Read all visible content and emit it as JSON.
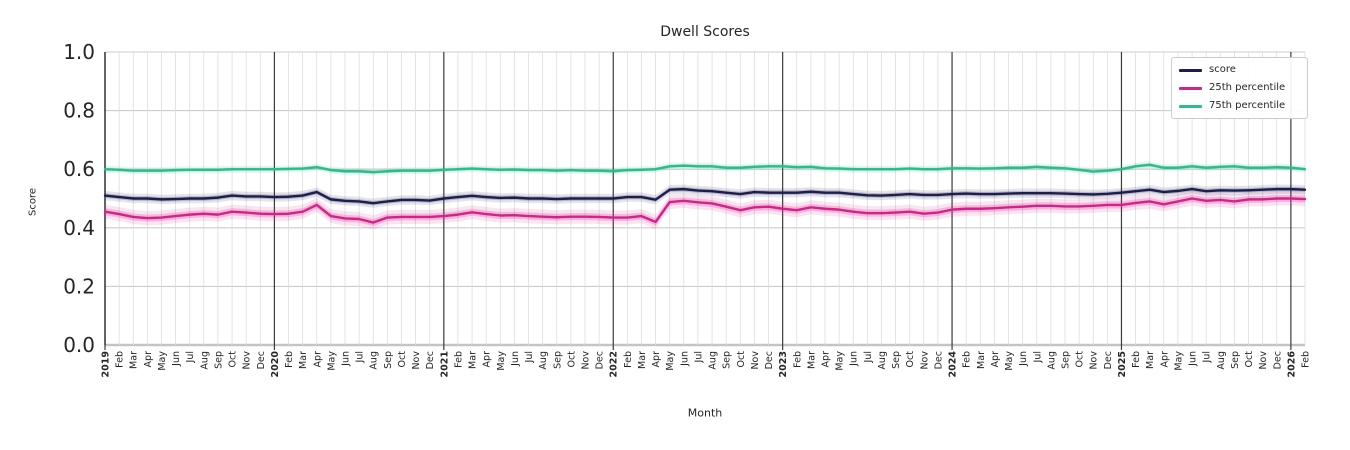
{
  "chart_data": {
    "type": "line",
    "title": "Dwell Scores",
    "xlabel": "Month",
    "ylabel": "Score",
    "ylim": [
      0.0,
      1.0
    ],
    "y_tick_labels": [
      "0.0",
      "0.2",
      "0.4",
      "0.6",
      "0.8",
      "1.0"
    ],
    "grid": "horizontal gridlines at 0.2 steps; light vertical gridline each month; dark vertical line each January",
    "legend_position": "upper right",
    "x_ticks": [
      "2019",
      "Feb",
      "Mar",
      "Apr",
      "May",
      "Jun",
      "Jul",
      "Aug",
      "Sep",
      "Oct",
      "Nov",
      "Dec",
      "2020",
      "Feb",
      "Mar",
      "Apr",
      "May",
      "Jun",
      "Jul",
      "Aug",
      "Sep",
      "Oct",
      "Nov",
      "Dec",
      "2021",
      "Feb",
      "Mar",
      "Apr",
      "May",
      "Jun",
      "Jul",
      "Aug",
      "Sep",
      "Oct",
      "Nov",
      "Dec",
      "2022",
      "Feb",
      "Mar",
      "Apr",
      "May",
      "Jun",
      "Jul",
      "Aug",
      "Sep",
      "Oct",
      "Nov",
      "Dec",
      "2023",
      "Feb",
      "Mar",
      "Apr",
      "May",
      "Jun",
      "Jul",
      "Aug",
      "Sep",
      "Oct",
      "Nov",
      "Dec",
      "2024",
      "Feb",
      "Mar",
      "Apr",
      "May",
      "Jun",
      "Jul",
      "Aug",
      "Sep",
      "Oct",
      "Nov",
      "Dec",
      "2025",
      "Feb",
      "Mar",
      "Apr",
      "May",
      "Jun",
      "Jul",
      "Aug",
      "Sep",
      "Oct",
      "Nov",
      "Dec",
      "2026",
      "Feb"
    ],
    "series": [
      {
        "name": "score",
        "color": "#1d1e4f",
        "band_halfwidth": [
          0.008,
          0.016
        ],
        "values": [
          0.51,
          0.505,
          0.5,
          0.5,
          0.497,
          0.498,
          0.5,
          0.5,
          0.503,
          0.51,
          0.507,
          0.507,
          0.505,
          0.506,
          0.51,
          0.522,
          0.497,
          0.492,
          0.49,
          0.484,
          0.49,
          0.495,
          0.495,
          0.493,
          0.5,
          0.505,
          0.509,
          0.505,
          0.502,
          0.503,
          0.5,
          0.5,
          0.498,
          0.5,
          0.5,
          0.5,
          0.5,
          0.505,
          0.505,
          0.496,
          0.53,
          0.532,
          0.527,
          0.525,
          0.52,
          0.515,
          0.522,
          0.52,
          0.52,
          0.52,
          0.523,
          0.52,
          0.52,
          0.515,
          0.511,
          0.51,
          0.512,
          0.515,
          0.512,
          0.512,
          0.515,
          0.517,
          0.515,
          0.515,
          0.517,
          0.518,
          0.518,
          0.518,
          0.517,
          0.515,
          0.514,
          0.516,
          0.52,
          0.525,
          0.53,
          0.522,
          0.526,
          0.532,
          0.525,
          0.528,
          0.527,
          0.528,
          0.53,
          0.532,
          0.532,
          0.53
        ]
      },
      {
        "name": "25th percentile",
        "color": "#d4218c",
        "band_halfwidth": [
          0.012,
          0.024
        ],
        "values": [
          0.455,
          0.447,
          0.437,
          0.433,
          0.435,
          0.44,
          0.445,
          0.448,
          0.445,
          0.455,
          0.452,
          0.448,
          0.447,
          0.448,
          0.455,
          0.478,
          0.44,
          0.432,
          0.43,
          0.418,
          0.435,
          0.437,
          0.437,
          0.437,
          0.44,
          0.445,
          0.453,
          0.447,
          0.442,
          0.443,
          0.44,
          0.438,
          0.436,
          0.438,
          0.438,
          0.437,
          0.435,
          0.435,
          0.44,
          0.42,
          0.488,
          0.492,
          0.487,
          0.483,
          0.472,
          0.46,
          0.47,
          0.472,
          0.465,
          0.46,
          0.47,
          0.465,
          0.462,
          0.455,
          0.45,
          0.45,
          0.452,
          0.455,
          0.448,
          0.452,
          0.462,
          0.465,
          0.465,
          0.467,
          0.47,
          0.472,
          0.475,
          0.475,
          0.473,
          0.473,
          0.475,
          0.478,
          0.478,
          0.485,
          0.49,
          0.48,
          0.49,
          0.5,
          0.492,
          0.495,
          0.49,
          0.497,
          0.497,
          0.5,
          0.5,
          0.498
        ]
      },
      {
        "name": "75th percentile",
        "color": "#2abd8d",
        "band_halfwidth": [
          0.006,
          0.012
        ],
        "values": [
          0.6,
          0.598,
          0.595,
          0.595,
          0.595,
          0.597,
          0.598,
          0.598,
          0.598,
          0.6,
          0.6,
          0.6,
          0.6,
          0.601,
          0.602,
          0.607,
          0.597,
          0.593,
          0.593,
          0.59,
          0.593,
          0.595,
          0.595,
          0.595,
          0.598,
          0.6,
          0.602,
          0.6,
          0.598,
          0.599,
          0.597,
          0.597,
          0.595,
          0.597,
          0.595,
          0.595,
          0.593,
          0.597,
          0.598,
          0.6,
          0.61,
          0.612,
          0.61,
          0.61,
          0.605,
          0.605,
          0.608,
          0.61,
          0.61,
          0.607,
          0.608,
          0.603,
          0.602,
          0.6,
          0.6,
          0.6,
          0.6,
          0.602,
          0.6,
          0.6,
          0.603,
          0.603,
          0.602,
          0.603,
          0.605,
          0.605,
          0.608,
          0.605,
          0.603,
          0.598,
          0.592,
          0.595,
          0.6,
          0.61,
          0.615,
          0.605,
          0.605,
          0.61,
          0.605,
          0.608,
          0.61,
          0.605,
          0.605,
          0.607,
          0.605,
          0.6
        ]
      }
    ],
    "colors": {
      "text": "#262626",
      "minor_vgrid": "#dcdcdc",
      "hgrid": "#cccccc",
      "year_line": "#3b3b3b",
      "baseline": "#c4c4c4",
      "left_spine": "#262626",
      "legend_border": "#cccccc"
    }
  }
}
